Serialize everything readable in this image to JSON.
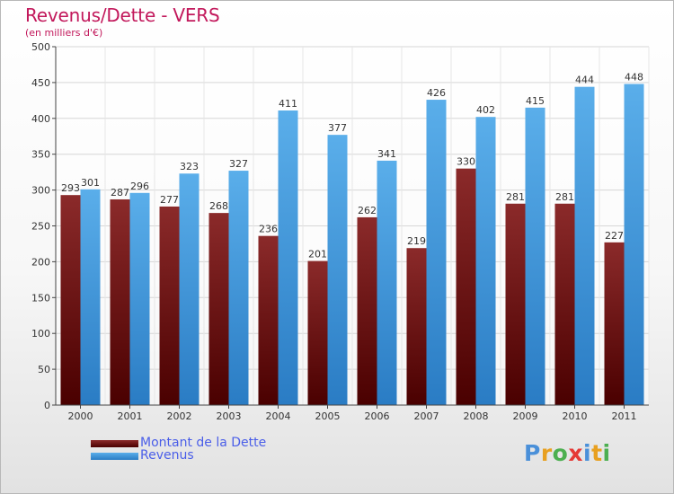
{
  "title": "Revenus/Dette - VERS",
  "subtitle": "(en milliers d'€)",
  "logo": {
    "letters": [
      "P",
      "r",
      "o",
      "x",
      "i",
      "t",
      "i"
    ],
    "colors": [
      "#4a90d9",
      "#e8a020",
      "#4caf50",
      "#e53935",
      "#4a90d9",
      "#e8a020",
      "#4caf50"
    ]
  },
  "chart_data": {
    "type": "bar",
    "title": "Revenus/Dette - VERS",
    "subtitle": "(en milliers d'€)",
    "categories": [
      "2000",
      "2001",
      "2002",
      "2003",
      "2004",
      "2005",
      "2006",
      "2007",
      "2008",
      "2009",
      "2010",
      "2011"
    ],
    "series": [
      {
        "name": "Montant de la Dette",
        "color": "#7b1a1a",
        "values": [
          293,
          287,
          277,
          268,
          236,
          201,
          262,
          219,
          330,
          281,
          281,
          227
        ]
      },
      {
        "name": "Revenus",
        "color": "#3d9be0",
        "values": [
          301,
          296,
          323,
          327,
          411,
          377,
          341,
          426,
          402,
          415,
          444,
          448
        ]
      }
    ],
    "ylim": [
      0,
      500
    ],
    "yticks": [
      0,
      50,
      100,
      150,
      200,
      250,
      300,
      350,
      400,
      450,
      500
    ],
    "grid": true,
    "legend": "bottom-left"
  }
}
